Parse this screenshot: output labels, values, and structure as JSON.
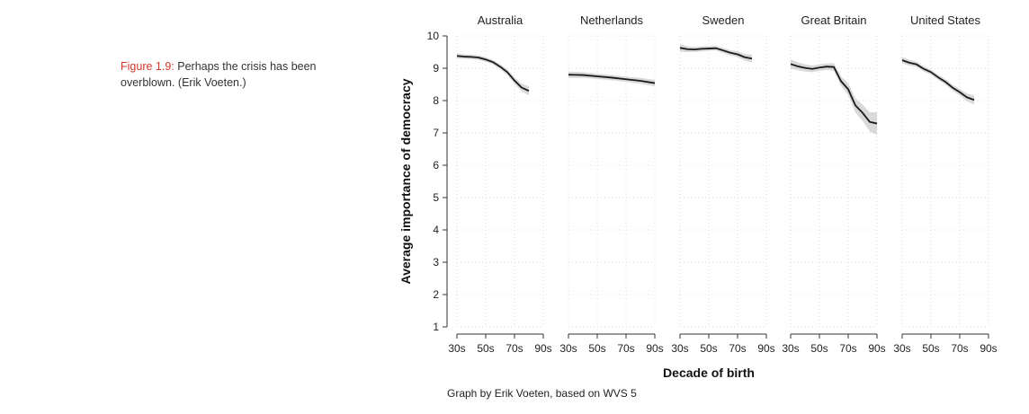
{
  "caption": {
    "label": "Figure 1.9:",
    "text": "Perhaps the crisis has been overblown. (Erik Voeten.)"
  },
  "source_note": "Graph by Erik Voeten, based on WVS 5",
  "chart_data": {
    "type": "line",
    "xlabel": "Decade of birth",
    "ylabel": "Average importance of democracy",
    "ylim": [
      1,
      10
    ],
    "yticks": [
      1,
      2,
      3,
      4,
      5,
      6,
      7,
      8,
      9,
      10
    ],
    "xlim": [
      1930,
      1990
    ],
    "xticks": [
      1930,
      1950,
      1970,
      1990
    ],
    "xtick_labels": [
      "30s",
      "50s",
      "70s",
      "90s"
    ],
    "grid": true,
    "confidence_band": true,
    "line_color": "#1a1a1a",
    "band_color": "#d9d9d9",
    "panels": [
      {
        "title": "Australia",
        "x": [
          1930,
          1935,
          1940,
          1945,
          1950,
          1955,
          1960,
          1965,
          1970,
          1975,
          1980
        ],
        "y": [
          9.38,
          9.36,
          9.35,
          9.33,
          9.27,
          9.19,
          9.05,
          8.88,
          8.62,
          8.4,
          8.3
        ],
        "band": [
          0.08,
          0.07,
          0.07,
          0.07,
          0.07,
          0.07,
          0.08,
          0.09,
          0.1,
          0.12,
          0.14
        ]
      },
      {
        "title": "Netherlands",
        "x": [
          1930,
          1940,
          1950,
          1960,
          1970,
          1980,
          1990
        ],
        "y": [
          8.8,
          8.79,
          8.75,
          8.71,
          8.66,
          8.61,
          8.54
        ],
        "band": [
          0.1,
          0.09,
          0.08,
          0.08,
          0.08,
          0.09,
          0.1
        ]
      },
      {
        "title": "Sweden",
        "x": [
          1930,
          1935,
          1940,
          1945,
          1950,
          1955,
          1960,
          1965,
          1970,
          1975,
          1980
        ],
        "y": [
          9.63,
          9.59,
          9.58,
          9.6,
          9.61,
          9.62,
          9.55,
          9.48,
          9.43,
          9.34,
          9.3
        ],
        "band": [
          0.12,
          0.09,
          0.08,
          0.08,
          0.07,
          0.07,
          0.08,
          0.08,
          0.09,
          0.1,
          0.12
        ]
      },
      {
        "title": "Great Britain",
        "x": [
          1930,
          1935,
          1940,
          1945,
          1950,
          1955,
          1960,
          1965,
          1970,
          1975,
          1980,
          1985,
          1990
        ],
        "y": [
          9.13,
          9.06,
          9.01,
          8.98,
          9.02,
          9.05,
          9.04,
          8.6,
          8.35,
          7.85,
          7.62,
          7.34,
          7.29
        ],
        "band": [
          0.14,
          0.12,
          0.11,
          0.1,
          0.1,
          0.1,
          0.12,
          0.15,
          0.18,
          0.22,
          0.25,
          0.3,
          0.35
        ]
      },
      {
        "title": "United States",
        "x": [
          1930,
          1935,
          1940,
          1945,
          1950,
          1955,
          1960,
          1965,
          1970,
          1975,
          1980
        ],
        "y": [
          9.25,
          9.17,
          9.12,
          8.98,
          8.88,
          8.72,
          8.58,
          8.4,
          8.26,
          8.1,
          8.02
        ],
        "band": [
          0.1,
          0.09,
          0.08,
          0.08,
          0.08,
          0.08,
          0.08,
          0.09,
          0.1,
          0.12,
          0.14
        ]
      }
    ]
  }
}
